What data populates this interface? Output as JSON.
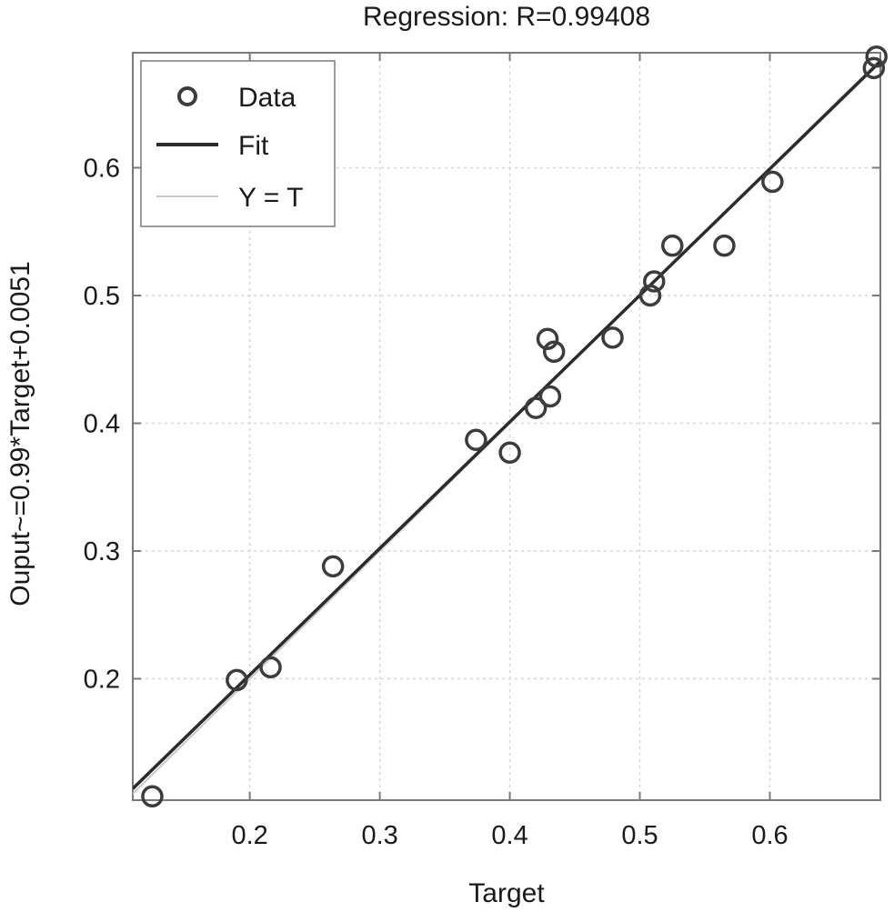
{
  "chart_data": {
    "type": "scatter",
    "title": "Regression: R=0.99408",
    "xlabel": "Target",
    "ylabel": "Ouput~=0.99*Target+0.0051",
    "xlim": [
      0.11,
      0.685
    ],
    "ylim": [
      0.105,
      0.69
    ],
    "xticks": [
      0.2,
      0.3,
      0.4,
      0.5,
      0.6
    ],
    "yticks": [
      0.2,
      0.3,
      0.4,
      0.5,
      0.6
    ],
    "xtick_labels": [
      "0.2",
      "0.3",
      "0.4",
      "0.5",
      "0.6"
    ],
    "ytick_labels": [
      "0.2",
      "0.3",
      "0.4",
      "0.5",
      "0.6"
    ],
    "grid": true,
    "legend_position": "top-left",
    "legend": [
      "Data",
      "Fit",
      "Y = T"
    ],
    "series": [
      {
        "name": "Data",
        "x": [
          0.125,
          0.19,
          0.216,
          0.264,
          0.374,
          0.4,
          0.42,
          0.429,
          0.431,
          0.434,
          0.479,
          0.508,
          0.511,
          0.525,
          0.565,
          0.602,
          0.68,
          0.682
        ],
        "y": [
          0.108,
          0.199,
          0.209,
          0.288,
          0.387,
          0.377,
          0.412,
          0.466,
          0.421,
          0.456,
          0.467,
          0.5,
          0.511,
          0.539,
          0.539,
          0.589,
          0.678,
          0.687
        ]
      },
      {
        "name": "Fit",
        "slope": 0.99,
        "intercept": 0.0051
      },
      {
        "name": "Y = T",
        "slope": 1,
        "intercept": 0
      }
    ],
    "colors": {
      "data_marker": "#3c3c3c",
      "fit_line": "#2b2b2b",
      "identity_line": "#c8c8c8",
      "grid": "#d6d6d6",
      "axes": "#7a7a7a"
    }
  }
}
